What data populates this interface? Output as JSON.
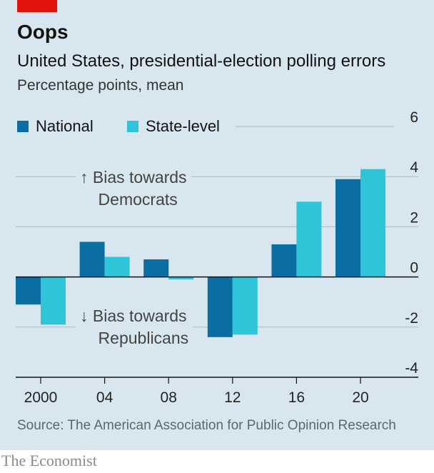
{
  "chart_data": {
    "type": "bar",
    "title": "Oops",
    "subtitle": "United States, presidential-election polling errors",
    "unit_label": "Percentage points, mean",
    "categories": [
      "2000",
      "04",
      "08",
      "12",
      "16",
      "20"
    ],
    "series": [
      {
        "name": "National",
        "color": "#0a6ea2",
        "values": [
          -1.1,
          1.4,
          0.7,
          -2.4,
          1.3,
          3.9
        ]
      },
      {
        "name": "State-level",
        "color": "#2ec5d8",
        "values": [
          -1.9,
          0.8,
          -0.1,
          -2.3,
          3.0,
          4.3
        ]
      }
    ],
    "y_range": [
      -4,
      6
    ],
    "y_ticks": [
      "6",
      "4",
      "2",
      "0",
      "-2",
      "-4"
    ],
    "y_axis_side": "right",
    "grid": true,
    "legend_position": "top-left",
    "annotations": {
      "democrats": "↑ Bias towards\n    Democrats",
      "republicans": "↓ Bias towards\n    Republicans"
    },
    "source": "Source: The American Association for Public Opinion Research"
  },
  "branding": {
    "publisher": "The Economist",
    "accent_color": "#e3120b",
    "panel_color": "#d8e6ef"
  }
}
